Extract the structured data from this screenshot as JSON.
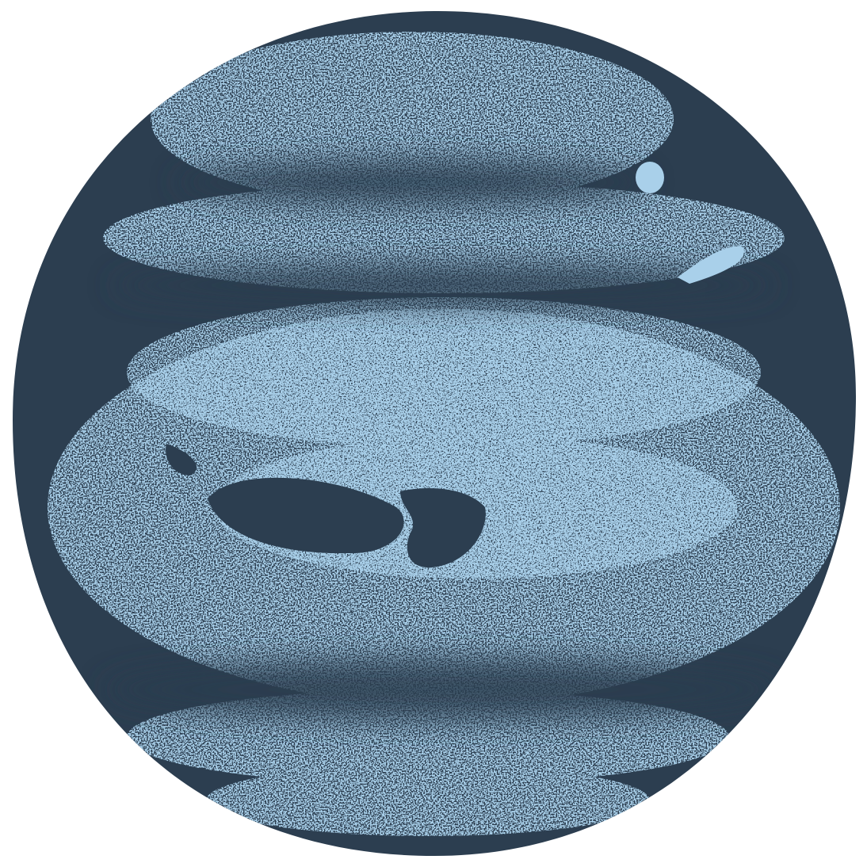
{
  "illustration": {
    "subject": "planet-icon",
    "colors": {
      "background": "#ffffff",
      "dark": "#2c3e50",
      "light": "#a9d0ea"
    }
  }
}
